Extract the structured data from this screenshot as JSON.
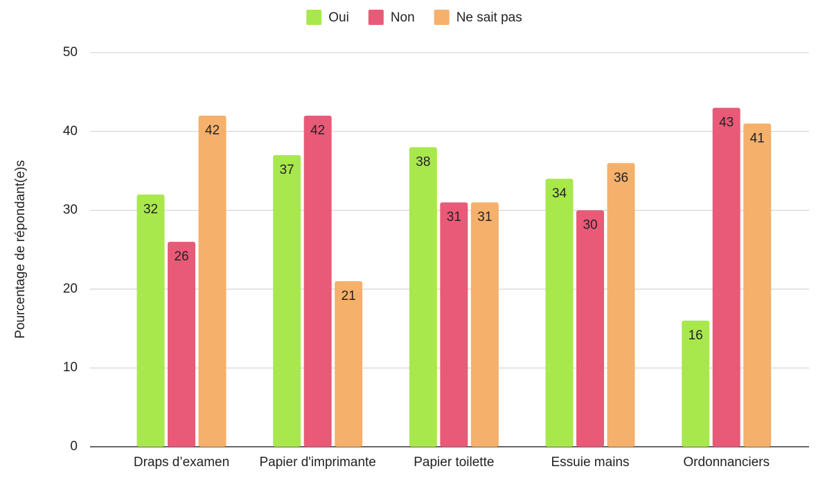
{
  "chart_data": {
    "type": "bar",
    "y_label": "Pourcentage de répondant(e)s",
    "categories": [
      "Draps d’examen",
      "Papier d'imprimante",
      "Papier toilette",
      "Essuie mains",
      "Ordonnanciers"
    ],
    "series": [
      {
        "name": "Oui",
        "color": "#a8e84d",
        "values": [
          32,
          37,
          38,
          34,
          16
        ]
      },
      {
        "name": "Non",
        "color": "#e85a78",
        "values": [
          26,
          42,
          31,
          30,
          43
        ]
      },
      {
        "name": "Ne sait pas",
        "color": "#f5b06b",
        "values": [
          42,
          21,
          31,
          36,
          41
        ]
      }
    ],
    "ylim": [
      0,
      50
    ],
    "yticks": [
      0,
      10,
      20,
      30,
      40,
      50
    ],
    "grid": true,
    "legend": "top"
  }
}
